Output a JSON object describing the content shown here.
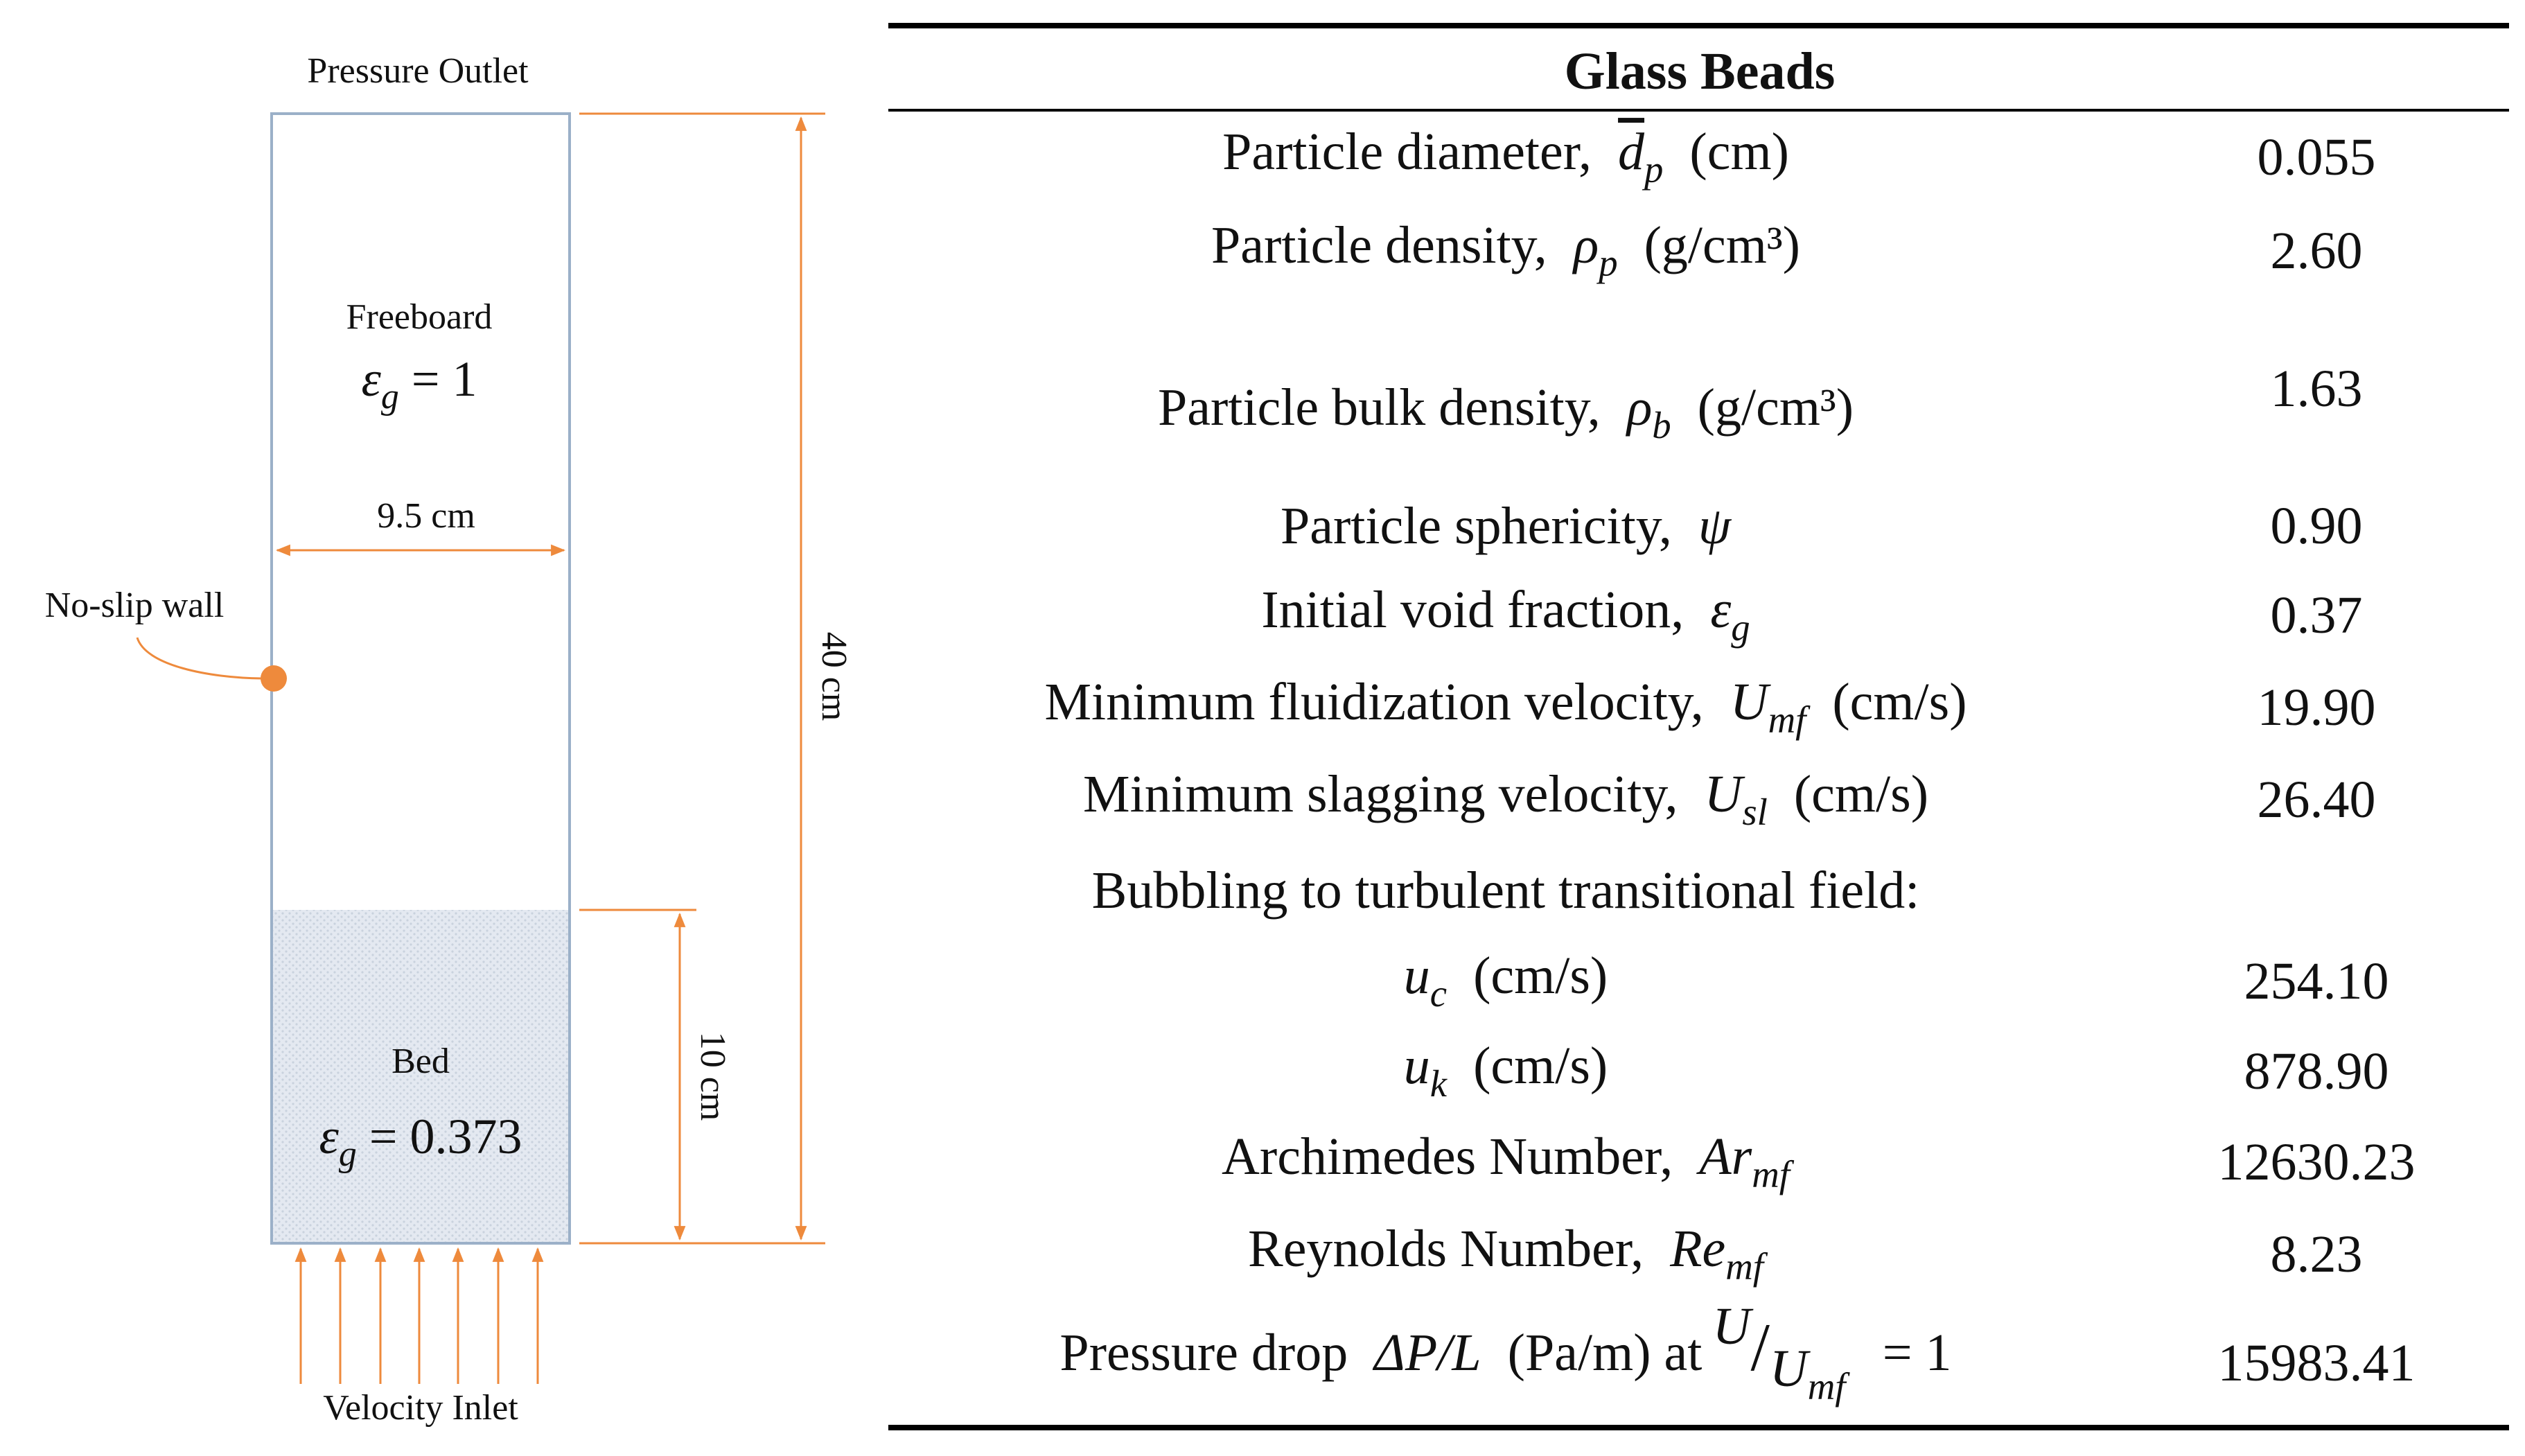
{
  "diagram": {
    "top_label": "Pressure Outlet",
    "freeboard": {
      "label": "Freeboard",
      "symbol": "ε",
      "sub": "g",
      "rhs": "= 1"
    },
    "width_label": "9.5 cm",
    "wall_label": "No-slip wall",
    "height_label": "40 cm",
    "bed_height_label": "10 cm",
    "bed": {
      "label": "Bed",
      "symbol": "ε",
      "sub": "g",
      "rhs": "= 0.373"
    },
    "bottom_label": "Velocity Inlet"
  },
  "table": {
    "header": "Glass Beads",
    "rows": [
      {
        "label": "Particle diameter,",
        "symbol": "d",
        "sub": "p",
        "unit": "(cm)",
        "value": "0.055"
      },
      {
        "label": "Particle density,",
        "symbol": "ρ",
        "sub": "p",
        "unit": "(g/cm³)",
        "value": "2.60"
      },
      {
        "label": "Particle bulk density,",
        "symbol": "ρ",
        "sub": "b",
        "unit": "(g/cm³)",
        "value": "1.63"
      },
      {
        "label": "Particle sphericity,",
        "symbol": "ψ",
        "value": "0.90"
      },
      {
        "label": "Initial void fraction,",
        "symbol": "ε",
        "sub": "g",
        "value": "0.37"
      },
      {
        "label": "Minimum fluidization velocity,",
        "symbol": "U",
        "sub": "mf",
        "unit": "(cm/s)",
        "value": "19.90"
      },
      {
        "label": "Minimum slagging velocity,",
        "symbol": "U",
        "sub": "sl",
        "unit": "(cm/s)",
        "value": "26.40"
      },
      {
        "label": "Bubbling to turbulent transitional field:"
      },
      {
        "symbol": "u",
        "sub": "c",
        "unit": "(cm/s)",
        "value": "254.10"
      },
      {
        "symbol": "u",
        "sub": "k",
        "unit": "(cm/s)",
        "value": "878.90"
      },
      {
        "label": "Archimedes Number,",
        "symbol": "Ar",
        "sub": "mf",
        "value": "12630.23"
      },
      {
        "label": "Reynolds Number,",
        "symbol": "Re",
        "sub": "mf",
        "value": "8.23"
      },
      {
        "label": "Pressure drop",
        "symbol": "ΔP/L",
        "unit": "(Pa/m) at",
        "ratio": {
          "num": "U",
          "den": "U",
          "den_sub": "mf",
          "rhs": "= 1"
        },
        "value": "15983.41"
      }
    ]
  }
}
